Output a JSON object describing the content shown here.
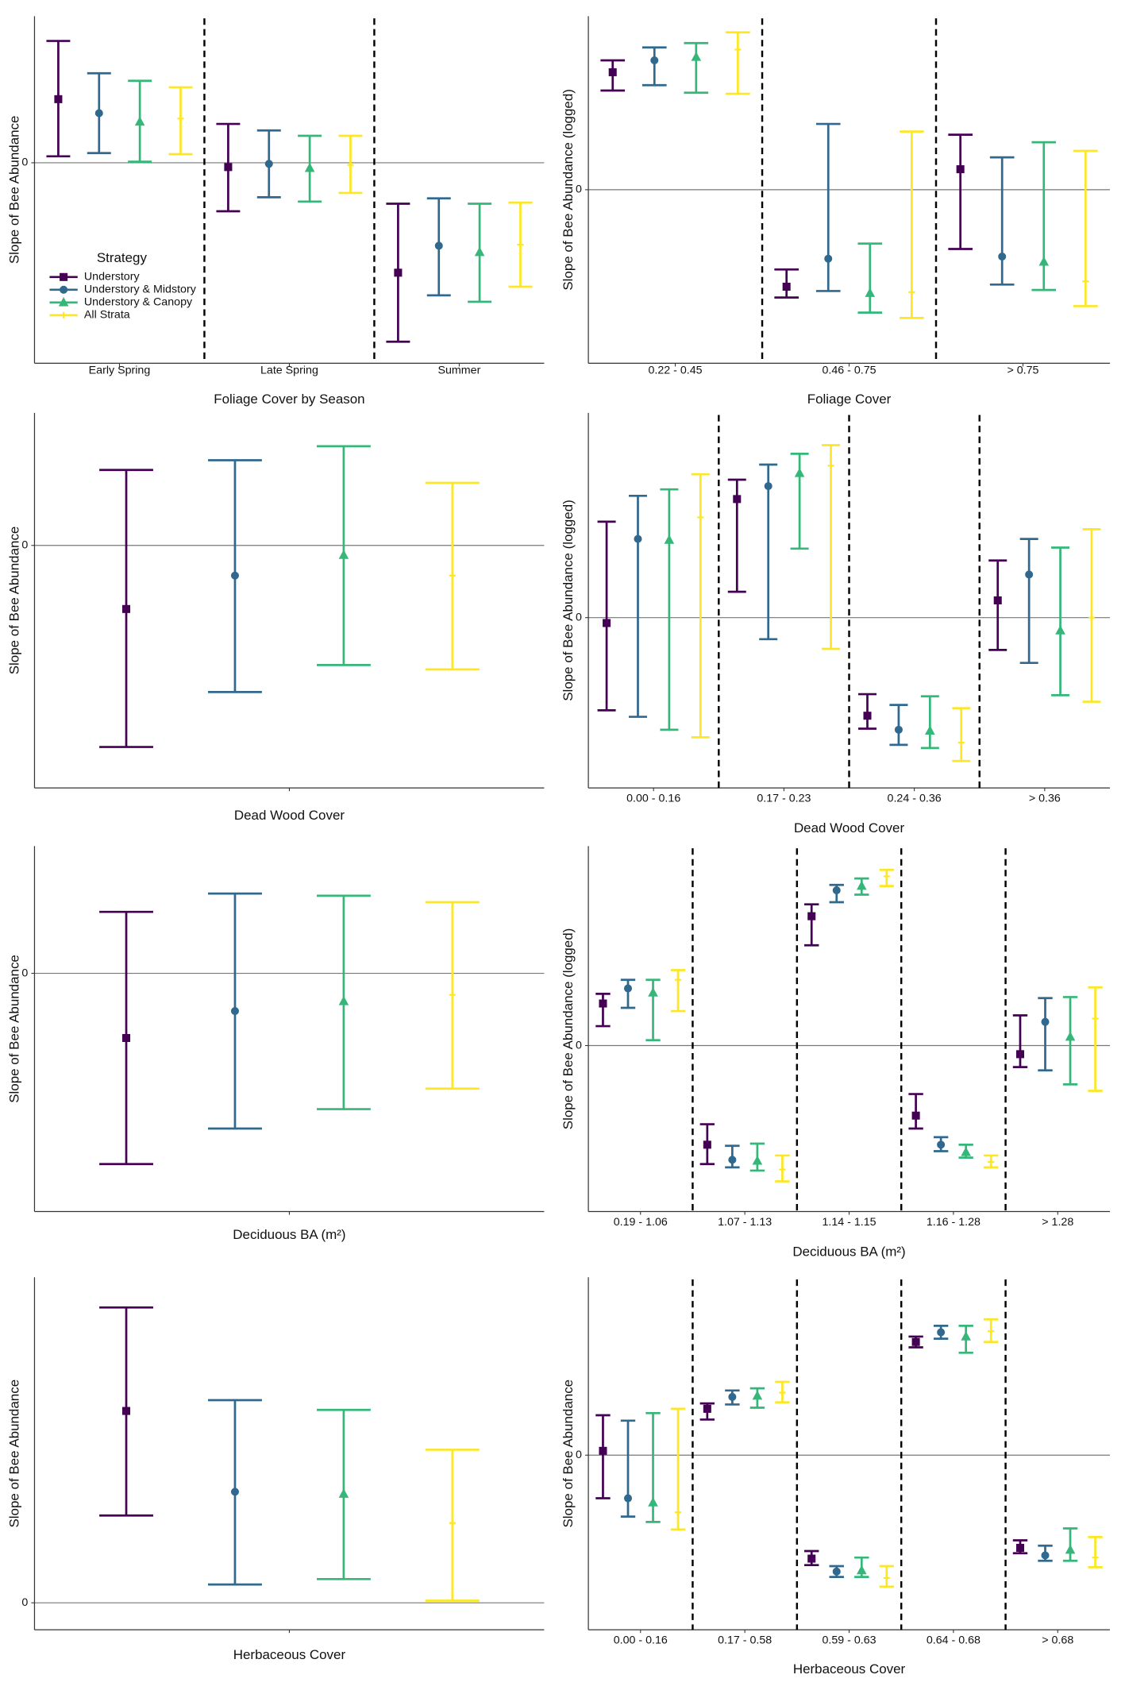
{
  "chart_data": [
    {
      "type": "errorbar",
      "xlabel": "Foliage Cover by Season",
      "ylabel": "Slope of Bee Abundance",
      "categories": [
        "Early Spring",
        "Late Spring",
        "Summer"
      ],
      "ylim": [
        -1.86,
        1.36
      ],
      "yticks": [
        0
      ],
      "grid": true,
      "separators": true,
      "legend": true,
      "legend_title": "Strategy",
      "series": [
        {
          "name": "Understory",
          "color": "#440154",
          "marker": "square",
          "values": [
            0.59,
            -0.04,
            -1.02
          ],
          "lower": [
            0.06,
            -0.45,
            -1.66
          ],
          "upper": [
            1.13,
            0.36,
            -0.38
          ]
        },
        {
          "name": "Understory & Midstory",
          "color": "#31688e",
          "marker": "circle",
          "values": [
            0.46,
            -0.01,
            -0.77
          ],
          "lower": [
            0.09,
            -0.32,
            -1.23
          ],
          "upper": [
            0.83,
            0.3,
            -0.33
          ]
        },
        {
          "name": "Understory & Canopy",
          "color": "#35b779",
          "marker": "triangle",
          "values": [
            0.38,
            -0.05,
            -0.83
          ],
          "lower": [
            0.01,
            -0.36,
            -1.29
          ],
          "upper": [
            0.76,
            0.25,
            -0.38
          ]
        },
        {
          "name": "All Strata",
          "color": "#fde725",
          "marker": "plus",
          "values": [
            0.41,
            -0.02,
            -0.76
          ],
          "lower": [
            0.08,
            -0.28,
            -1.15
          ],
          "upper": [
            0.7,
            0.25,
            -0.37
          ]
        }
      ]
    },
    {
      "type": "errorbar",
      "xlabel": "Foliage Cover",
      "ylabel": "Slope of Bee Abundance (logged)",
      "categories": [
        "0.22 - 0.45",
        "0.46 - 0.75",
        "> 0.75"
      ],
      "ylim": [
        -1.61,
        1.61
      ],
      "yticks": [
        0
      ],
      "grid": true,
      "separators": true,
      "series": [
        {
          "color": "#440154",
          "marker": "square",
          "values": [
            1.09,
            -0.9,
            0.19
          ],
          "lower": [
            0.92,
            -1.0,
            -0.55
          ],
          "upper": [
            1.2,
            -0.74,
            0.51
          ]
        },
        {
          "color": "#31688e",
          "marker": "circle",
          "values": [
            1.2,
            -0.64,
            -0.62
          ],
          "lower": [
            0.97,
            -0.94,
            -0.88
          ],
          "upper": [
            1.32,
            0.61,
            0.3
          ]
        },
        {
          "color": "#35b779",
          "marker": "triangle",
          "values": [
            1.23,
            -0.96,
            -0.67
          ],
          "lower": [
            0.9,
            -1.14,
            -0.93
          ],
          "upper": [
            1.36,
            -0.5,
            0.44
          ]
        },
        {
          "color": "#fde725",
          "marker": "plus",
          "values": [
            1.3,
            -0.95,
            -0.85
          ],
          "lower": [
            0.89,
            -1.19,
            -1.08
          ],
          "upper": [
            1.46,
            0.54,
            0.36
          ]
        }
      ]
    },
    {
      "type": "errorbar",
      "xlabel": "Dead Wood Cover",
      "ylabel": "Slope of Bee Abundance",
      "categories": [
        null
      ],
      "ylim": [
        -2.25,
        1.23
      ],
      "yticks": [
        0
      ],
      "grid": true,
      "separators": false,
      "series": [
        {
          "color": "#440154",
          "marker": "square",
          "values": [
            -0.59
          ],
          "lower": [
            -1.87
          ],
          "upper": [
            0.7
          ]
        },
        {
          "color": "#31688e",
          "marker": "circle",
          "values": [
            -0.28
          ],
          "lower": [
            -1.36
          ],
          "upper": [
            0.79
          ]
        },
        {
          "color": "#35b779",
          "marker": "triangle",
          "values": [
            -0.09
          ],
          "lower": [
            -1.11
          ],
          "upper": [
            0.92
          ]
        },
        {
          "color": "#fde725",
          "marker": "plus",
          "values": [
            -0.28
          ],
          "lower": [
            -1.15
          ],
          "upper": [
            0.58
          ]
        }
      ]
    },
    {
      "type": "errorbar",
      "xlabel": "Dead Wood Cover",
      "ylabel": "Slope of Bee Abundance (logged)",
      "categories": [
        "0.00 - 0.16",
        "0.17 - 0.23",
        "0.24 - 0.36",
        "> 0.36"
      ],
      "ylim": [
        -1.58,
        1.9
      ],
      "yticks": [
        0
      ],
      "grid": true,
      "separators": true,
      "series": [
        {
          "color": "#440154",
          "marker": "square",
          "values": [
            -0.05,
            1.1,
            -0.91,
            0.16
          ],
          "lower": [
            -0.86,
            0.24,
            -1.03,
            -0.3
          ],
          "upper": [
            0.89,
            1.28,
            -0.71,
            0.53
          ]
        },
        {
          "color": "#31688e",
          "marker": "circle",
          "values": [
            0.73,
            1.22,
            -1.04,
            0.4
          ],
          "lower": [
            -0.92,
            -0.2,
            -1.18,
            -0.42
          ],
          "upper": [
            1.13,
            1.42,
            -0.81,
            0.73
          ]
        },
        {
          "color": "#35b779",
          "marker": "triangle",
          "values": [
            0.72,
            1.34,
            -1.05,
            -0.12
          ],
          "lower": [
            -1.04,
            0.64,
            -1.21,
            -0.72
          ],
          "upper": [
            1.19,
            1.52,
            -0.73,
            0.65
          ]
        },
        {
          "color": "#fde725",
          "marker": "plus",
          "values": [
            0.93,
            1.41,
            -1.16,
            0.0
          ],
          "lower": [
            -1.11,
            -0.29,
            -1.33,
            -0.78
          ],
          "upper": [
            1.33,
            1.6,
            -0.84,
            0.82
          ]
        }
      ]
    },
    {
      "type": "errorbar",
      "xlabel": "Deciduous BA (m²)",
      "ylabel": "Slope of Bee Abundance",
      "categories": [
        null
      ],
      "ylim": [
        -2.21,
        1.18
      ],
      "yticks": [
        0
      ],
      "grid": true,
      "separators": false,
      "series": [
        {
          "color": "#440154",
          "marker": "square",
          "values": [
            -0.6
          ],
          "lower": [
            -1.77
          ],
          "upper": [
            0.57
          ]
        },
        {
          "color": "#31688e",
          "marker": "circle",
          "values": [
            -0.35
          ],
          "lower": [
            -1.44
          ],
          "upper": [
            0.74
          ]
        },
        {
          "color": "#35b779",
          "marker": "triangle",
          "values": [
            -0.26
          ],
          "lower": [
            -1.26
          ],
          "upper": [
            0.72
          ]
        },
        {
          "color": "#fde725",
          "marker": "plus",
          "values": [
            -0.2
          ],
          "lower": [
            -1.07
          ],
          "upper": [
            0.66
          ]
        }
      ]
    },
    {
      "type": "errorbar",
      "xlabel": "Deciduous BA (m²)",
      "ylabel": "Slope of Bee Abundance (logged)",
      "categories": [
        "0.19 - 1.06",
        "1.07 - 1.13",
        "1.14 - 1.15",
        "1.16 - 1.28",
        "> 1.28"
      ],
      "ylim": [
        -1.54,
        1.85
      ],
      "yticks": [
        0
      ],
      "grid": true,
      "separators": true,
      "series": [
        {
          "color": "#440154",
          "marker": "square",
          "values": [
            0.39,
            -0.92,
            1.2,
            -0.65,
            -0.08
          ],
          "lower": [
            0.18,
            -1.1,
            0.93,
            -0.77,
            -0.2
          ],
          "upper": [
            0.48,
            -0.73,
            1.31,
            -0.45,
            0.28
          ]
        },
        {
          "color": "#31688e",
          "marker": "circle",
          "values": [
            0.53,
            -1.06,
            1.44,
            -0.92,
            0.22
          ],
          "lower": [
            0.35,
            -1.13,
            1.33,
            -0.98,
            -0.23
          ],
          "upper": [
            0.61,
            -0.93,
            1.49,
            -0.85,
            0.44
          ]
        },
        {
          "color": "#35b779",
          "marker": "triangle",
          "values": [
            0.49,
            -1.07,
            1.48,
            -0.99,
            0.08
          ],
          "lower": [
            0.05,
            -1.16,
            1.4,
            -1.04,
            -0.36
          ],
          "upper": [
            0.61,
            -0.91,
            1.55,
            -0.92,
            0.45
          ]
        },
        {
          "color": "#fde725",
          "marker": "plus",
          "values": [
            0.61,
            -1.15,
            1.57,
            -1.08,
            0.25
          ],
          "lower": [
            0.32,
            -1.26,
            1.48,
            -1.13,
            -0.42
          ],
          "upper": [
            0.7,
            -1.02,
            1.63,
            -1.02,
            0.54
          ]
        }
      ]
    },
    {
      "type": "errorbar",
      "xlabel": "Herbaceous Cover",
      "ylabel": "Slope of Bee Abundance",
      "categories": [
        null
      ],
      "ylim": [
        -0.25,
        3.02
      ],
      "yticks": [
        0
      ],
      "grid": true,
      "separators": false,
      "series": [
        {
          "color": "#440154",
          "marker": "square",
          "values": [
            1.78
          ],
          "lower": [
            0.81
          ],
          "upper": [
            2.74
          ]
        },
        {
          "color": "#31688e",
          "marker": "circle",
          "values": [
            1.03
          ],
          "lower": [
            0.17
          ],
          "upper": [
            1.88
          ]
        },
        {
          "color": "#35b779",
          "marker": "triangle",
          "values": [
            1.01
          ],
          "lower": [
            0.22
          ],
          "upper": [
            1.79
          ]
        },
        {
          "color": "#fde725",
          "marker": "plus",
          "values": [
            0.74
          ],
          "lower": [
            0.02
          ],
          "upper": [
            1.42
          ]
        }
      ]
    },
    {
      "type": "errorbar",
      "xlabel": "Herbaceous Cover",
      "ylabel": "Slope of Bee Abundance",
      "categories": [
        "0.00 - 0.16",
        "0.17 - 0.58",
        "0.59 - 0.63",
        "0.64 - 0.68",
        "> 0.68"
      ],
      "ylim": [
        -1.62,
        1.65
      ],
      "yticks": [
        0
      ],
      "grid": true,
      "separators": true,
      "series": [
        {
          "color": "#440154",
          "marker": "square",
          "values": [
            0.04,
            0.43,
            -0.96,
            1.05,
            -0.86
          ],
          "lower": [
            -0.4,
            0.33,
            -1.02,
            1.0,
            -0.91
          ],
          "upper": [
            0.37,
            0.48,
            -0.89,
            1.1,
            -0.79
          ]
        },
        {
          "color": "#31688e",
          "marker": "circle",
          "values": [
            -0.4,
            0.54,
            -1.08,
            1.14,
            -0.93
          ],
          "lower": [
            -0.57,
            0.47,
            -1.13,
            1.08,
            -0.98
          ],
          "upper": [
            0.32,
            0.6,
            -1.03,
            1.2,
            -0.84
          ]
        },
        {
          "color": "#35b779",
          "marker": "triangle",
          "values": [
            -0.44,
            0.55,
            -1.07,
            1.1,
            -0.88
          ],
          "lower": [
            -0.62,
            0.44,
            -1.13,
            0.95,
            -0.98
          ],
          "upper": [
            0.39,
            0.62,
            -0.95,
            1.2,
            -0.68
          ]
        },
        {
          "color": "#fde725",
          "marker": "plus",
          "values": [
            -0.53,
            0.58,
            -1.14,
            1.15,
            -0.95
          ],
          "lower": [
            -0.69,
            0.49,
            -1.22,
            1.05,
            -1.04
          ],
          "upper": [
            0.43,
            0.68,
            -1.03,
            1.26,
            -0.76
          ]
        }
      ]
    }
  ]
}
